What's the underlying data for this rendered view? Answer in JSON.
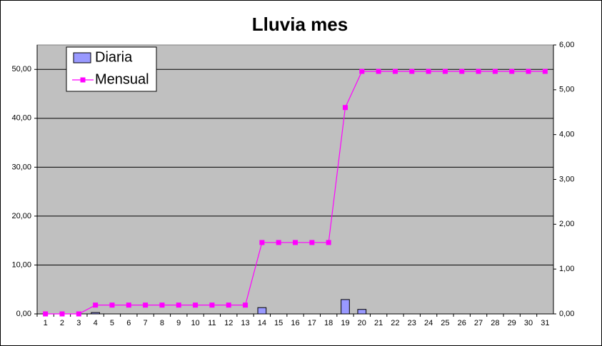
{
  "chart_data": {
    "type": "bar-line",
    "title": "Lluvia mes",
    "categories": [
      "1",
      "2",
      "3",
      "4",
      "5",
      "6",
      "7",
      "8",
      "9",
      "10",
      "11",
      "12",
      "13",
      "14",
      "15",
      "16",
      "17",
      "18",
      "19",
      "20",
      "21",
      "22",
      "23",
      "24",
      "25",
      "26",
      "27",
      "28",
      "29",
      "30",
      "31"
    ],
    "series": [
      {
        "name": "Diaria",
        "type": "bar",
        "color": "#9999ff",
        "axis": "y2",
        "values": [
          0,
          0,
          0,
          0.03,
          0,
          0,
          0,
          0,
          0,
          0,
          0,
          0,
          0,
          0.14,
          0,
          0,
          0,
          0,
          0.32,
          0.1,
          0,
          0,
          0,
          0,
          0,
          0,
          0,
          0,
          0,
          0,
          0
        ]
      },
      {
        "name": "Mensual",
        "type": "line",
        "color": "#ff00ff",
        "axis": "y",
        "values": [
          0,
          0,
          0,
          1.8,
          1.8,
          1.8,
          1.8,
          1.8,
          1.8,
          1.8,
          1.8,
          1.8,
          1.8,
          14.6,
          14.6,
          14.6,
          14.6,
          14.6,
          42.2,
          49.6,
          49.6,
          49.6,
          49.6,
          49.6,
          49.6,
          49.6,
          49.6,
          49.6,
          49.6,
          49.6,
          49.6
        ]
      }
    ],
    "ylim": [
      0,
      55
    ],
    "yticks": [
      {
        "value": 0,
        "label": "0,00"
      },
      {
        "value": 10,
        "label": "10,00"
      },
      {
        "value": 20,
        "label": "20,00"
      },
      {
        "value": 30,
        "label": "30,00"
      },
      {
        "value": 40,
        "label": "40,00"
      },
      {
        "value": 50,
        "label": "50,00"
      }
    ],
    "y2lim": [
      0,
      6
    ],
    "y2ticks": [
      {
        "value": 0,
        "label": "0,00"
      },
      {
        "value": 1,
        "label": "1,00"
      },
      {
        "value": 2,
        "label": "2,00"
      },
      {
        "value": 3,
        "label": "3,00"
      },
      {
        "value": 4,
        "label": "4,00"
      },
      {
        "value": 5,
        "label": "5,00"
      },
      {
        "value": 6,
        "label": "6,00"
      }
    ],
    "grid": true,
    "legend": "top-left"
  }
}
